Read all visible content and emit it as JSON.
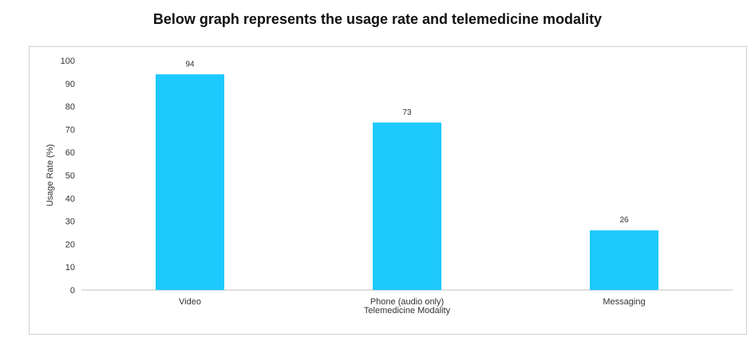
{
  "title": "Below graph represents the usage rate and telemedicine modality",
  "colors": {
    "bar": "#1ec9fd",
    "axis": "#bfbfbf",
    "frame": "#d0d0d0"
  },
  "chart_data": {
    "type": "bar",
    "categories": [
      "Video",
      "Phone (audio only)",
      "Messaging"
    ],
    "values": [
      94,
      73,
      26
    ],
    "data_labels": [
      "94",
      "73",
      "26"
    ],
    "xlabel": "Telemedicine Modality",
    "ylabel": "Usage Rate (%)",
    "ylim": [
      0,
      100
    ],
    "yticks": [
      0,
      10,
      20,
      30,
      40,
      50,
      60,
      70,
      80,
      90,
      100
    ],
    "grid": false,
    "legend": "none"
  }
}
